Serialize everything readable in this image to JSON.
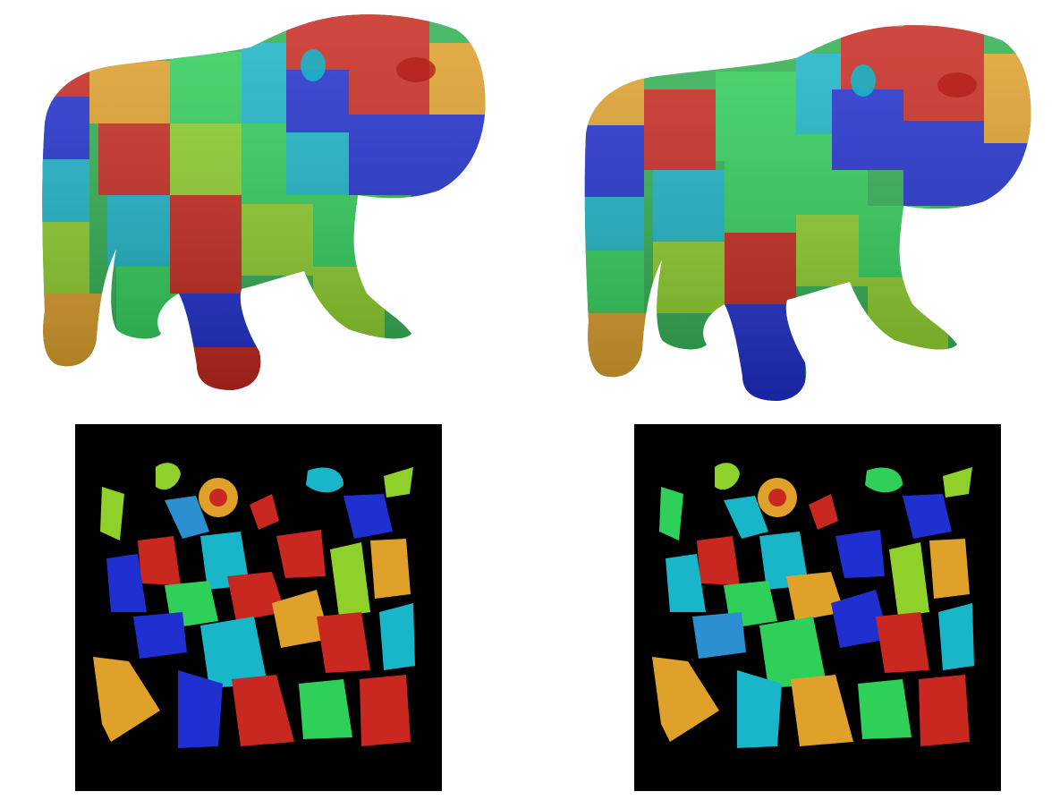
{
  "figure": {
    "panels": [
      {
        "id": "mesh-left",
        "kind": "textured-3d-mesh",
        "subject": "bulldog",
        "variant": "left",
        "artifacts": "jagged"
      },
      {
        "id": "mesh-right",
        "kind": "textured-3d-mesh",
        "subject": "bulldog",
        "variant": "right",
        "artifacts": "smooth"
      },
      {
        "id": "uv-left",
        "kind": "uv-atlas",
        "background": "#000000"
      },
      {
        "id": "uv-right",
        "kind": "uv-atlas",
        "background": "#000000"
      }
    ],
    "palette": [
      "#1f2fd0",
      "#19b5c8",
      "#2fd05a",
      "#8fd02a",
      "#e0a12a",
      "#c8281f",
      "#2b8fd0"
    ]
  }
}
